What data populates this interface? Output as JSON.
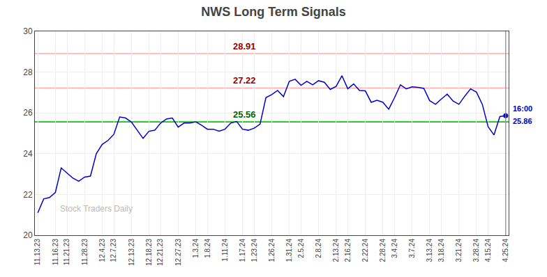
{
  "chart_data": {
    "type": "line",
    "title": "NWS Long Term Signals",
    "categories": [
      "11.13.23",
      null,
      null,
      "11.16.23",
      null,
      "11.21.23",
      null,
      null,
      "11.28.23",
      null,
      null,
      "12.4.23",
      null,
      "12.7.23",
      null,
      null,
      "12.13.23",
      null,
      null,
      "12.18.23",
      null,
      "12.21.23",
      null,
      null,
      "12.27.23",
      null,
      null,
      "1.3.24",
      null,
      "1.8.24",
      null,
      null,
      "1.11.24",
      null,
      null,
      "1.17.24",
      null,
      "1.23.24",
      null,
      null,
      "1.26.24",
      null,
      null,
      "1.31.24",
      null,
      "2.5.24",
      null,
      null,
      "2.8.24",
      null,
      null,
      "2.13.24",
      null,
      "2.16.24",
      null,
      null,
      "2.22.24",
      null,
      null,
      "2.28.24",
      null,
      "3.4.24",
      null,
      null,
      "3.7.24",
      null,
      null,
      "3.13.24",
      null,
      "3.18.24",
      null,
      null,
      "3.21.24",
      null,
      null,
      "3.28.24",
      null,
      "4.15.24",
      null,
      null,
      "4.25.24"
    ],
    "values": [
      21.1,
      21.78,
      21.85,
      22.1,
      23.3,
      23.05,
      22.8,
      22.65,
      22.85,
      22.9,
      24.0,
      24.45,
      24.65,
      24.95,
      25.8,
      25.75,
      25.55,
      25.15,
      24.75,
      25.1,
      25.15,
      25.5,
      25.7,
      25.75,
      25.3,
      25.5,
      25.5,
      25.56,
      25.4,
      25.2,
      25.2,
      25.1,
      25.2,
      25.5,
      25.58,
      25.2,
      25.15,
      25.25,
      25.45,
      26.75,
      26.9,
      27.1,
      26.8,
      27.55,
      27.65,
      27.35,
      27.55,
      27.38,
      27.58,
      27.5,
      27.15,
      27.3,
      27.82,
      27.18,
      27.42,
      27.1,
      27.08,
      26.52,
      26.62,
      26.52,
      26.18,
      26.75,
      27.38,
      27.18,
      27.28,
      27.25,
      27.2,
      26.6,
      26.42,
      26.68,
      26.92,
      26.58,
      26.42,
      26.82,
      27.18,
      27.02,
      26.42,
      25.32,
      24.92,
      25.82,
      25.86
    ],
    "color": "#0000cc",
    "ylim": [
      20,
      30
    ],
    "yticks": [
      20,
      22,
      24,
      26,
      28,
      30
    ],
    "grid": true,
    "reference_lines": [
      {
        "value": 28.91,
        "label": "28.91",
        "color": "#ffaaaa",
        "label_color": "#990000"
      },
      {
        "value": 27.22,
        "label": "27.22",
        "color": "#ffaaaa",
        "label_color": "#990000"
      },
      {
        "value": 25.56,
        "label": "25.56",
        "color": "#00cc00",
        "label_color": "#006600"
      }
    ],
    "last_point_labels": [
      "16:00",
      "25.86"
    ],
    "watermark": "Stock Traders Daily"
  }
}
